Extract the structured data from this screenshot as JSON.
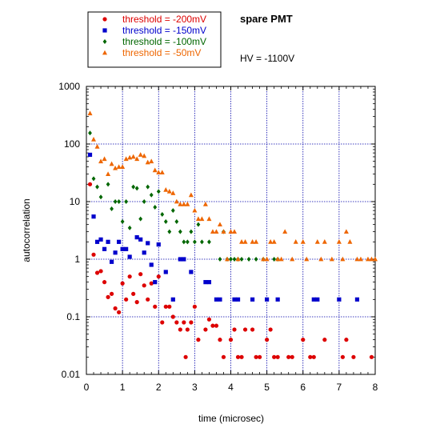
{
  "chart_data": {
    "type": "scatter",
    "title": "spare PMT",
    "annotation": "HV = -1100V",
    "xlabel": "time (microsec)",
    "ylabel": "autocorrelation",
    "xlim": [
      0,
      8
    ],
    "ylim": [
      0.01,
      1000
    ],
    "yscale": "log",
    "grid": true,
    "grid_style": "dotted, blue",
    "legend_position": "top-left, outside plot",
    "x_ticks": [
      "0",
      "1",
      "2",
      "3",
      "4",
      "5",
      "6",
      "7",
      "8"
    ],
    "y_ticks": [
      "0.01",
      "0.1",
      "1",
      "10",
      "100",
      "1000"
    ],
    "series": [
      {
        "name": "threshold = -200mV",
        "color": "#dd0000",
        "marker": "circle",
        "points": [
          [
            0.1,
            20
          ],
          [
            0.2,
            1.2
          ],
          [
            0.3,
            0.58
          ],
          [
            0.4,
            0.62
          ],
          [
            0.5,
            0.4
          ],
          [
            0.6,
            0.22
          ],
          [
            0.7,
            0.25
          ],
          [
            0.8,
            0.14
          ],
          [
            0.9,
            0.12
          ],
          [
            1.0,
            0.38
          ],
          [
            1.1,
            0.2
          ],
          [
            1.2,
            0.5
          ],
          [
            1.3,
            0.25
          ],
          [
            1.4,
            0.18
          ],
          [
            1.5,
            0.55
          ],
          [
            1.6,
            0.35
          ],
          [
            1.7,
            0.2
          ],
          [
            1.8,
            0.38
          ],
          [
            1.9,
            0.15
          ],
          [
            2.0,
            0.5
          ],
          [
            2.1,
            0.08
          ],
          [
            2.2,
            0.15
          ],
          [
            2.3,
            0.15
          ],
          [
            2.4,
            0.1
          ],
          [
            2.5,
            0.08
          ],
          [
            2.6,
            0.06
          ],
          [
            2.7,
            0.08
          ],
          [
            2.75,
            0.02
          ],
          [
            2.8,
            0.06
          ],
          [
            2.9,
            0.08
          ],
          [
            3.0,
            0.15
          ],
          [
            3.1,
            0.04
          ],
          [
            3.3,
            0.06
          ],
          [
            3.4,
            0.09
          ],
          [
            3.5,
            0.07
          ],
          [
            3.6,
            0.07
          ],
          [
            3.7,
            0.04
          ],
          [
            3.8,
            0.02
          ],
          [
            4.0,
            0.04
          ],
          [
            4.1,
            0.06
          ],
          [
            4.2,
            0.02
          ],
          [
            4.3,
            0.02
          ],
          [
            4.4,
            0.06
          ],
          [
            4.6,
            0.06
          ],
          [
            4.7,
            0.02
          ],
          [
            4.8,
            0.02
          ],
          [
            5.0,
            0.04
          ],
          [
            5.1,
            0.06
          ],
          [
            5.2,
            0.02
          ],
          [
            5.3,
            0.02
          ],
          [
            5.6,
            0.02
          ],
          [
            5.7,
            0.02
          ],
          [
            6.0,
            0.04
          ],
          [
            6.2,
            0.02
          ],
          [
            6.3,
            0.02
          ],
          [
            6.6,
            0.04
          ],
          [
            7.1,
            0.02
          ],
          [
            7.2,
            0.04
          ],
          [
            7.4,
            0.02
          ],
          [
            7.9,
            0.02
          ]
        ]
      },
      {
        "name": "threshold = -150mV",
        "color": "#0000cc",
        "marker": "square",
        "points": [
          [
            0.1,
            65
          ],
          [
            0.2,
            5.5
          ],
          [
            0.3,
            2
          ],
          [
            0.4,
            2.2
          ],
          [
            0.5,
            1.5
          ],
          [
            0.6,
            2
          ],
          [
            0.7,
            0.9
          ],
          [
            0.8,
            1.3
          ],
          [
            0.9,
            2
          ],
          [
            1.0,
            1.5
          ],
          [
            1.1,
            1.5
          ],
          [
            1.2,
            1.1
          ],
          [
            1.4,
            2.4
          ],
          [
            1.5,
            2.2
          ],
          [
            1.6,
            1.3
          ],
          [
            1.7,
            1.9
          ],
          [
            1.8,
            0.8
          ],
          [
            1.9,
            0.4
          ],
          [
            2.0,
            1.8
          ],
          [
            2.2,
            0.6
          ],
          [
            2.4,
            0.2
          ],
          [
            2.6,
            1
          ],
          [
            2.7,
            1
          ],
          [
            2.9,
            0.6
          ],
          [
            3.3,
            0.4
          ],
          [
            3.4,
            0.4
          ],
          [
            3.6,
            0.2
          ],
          [
            3.7,
            0.2
          ],
          [
            4.1,
            0.2
          ],
          [
            4.2,
            0.2
          ],
          [
            4.6,
            0.2
          ],
          [
            5.0,
            0.2
          ],
          [
            5.3,
            0.2
          ],
          [
            6.3,
            0.2
          ],
          [
            6.4,
            0.2
          ],
          [
            7.0,
            0.2
          ],
          [
            7.5,
            0.2
          ]
        ]
      },
      {
        "name": "threshold = -100mV",
        "color": "#006600",
        "marker": "diamond",
        "points": [
          [
            0.1,
            155
          ],
          [
            0.2,
            25
          ],
          [
            0.3,
            18
          ],
          [
            0.4,
            12
          ],
          [
            0.6,
            20
          ],
          [
            0.7,
            7.5
          ],
          [
            0.8,
            10
          ],
          [
            0.9,
            10
          ],
          [
            1.0,
            4.5
          ],
          [
            1.1,
            10
          ],
          [
            1.2,
            3.5
          ],
          [
            1.3,
            18
          ],
          [
            1.4,
            17
          ],
          [
            1.5,
            5
          ],
          [
            1.6,
            10
          ],
          [
            1.7,
            18
          ],
          [
            1.8,
            13
          ],
          [
            1.9,
            8
          ],
          [
            2.0,
            15
          ],
          [
            2.1,
            6
          ],
          [
            2.2,
            4.5
          ],
          [
            2.3,
            3
          ],
          [
            2.4,
            7
          ],
          [
            2.5,
            4.5
          ],
          [
            2.6,
            3
          ],
          [
            2.7,
            2
          ],
          [
            2.8,
            2
          ],
          [
            2.9,
            3
          ],
          [
            3.0,
            2
          ],
          [
            3.1,
            4
          ],
          [
            3.2,
            2
          ],
          [
            3.4,
            2
          ],
          [
            3.7,
            1
          ],
          [
            3.8,
            3
          ],
          [
            3.9,
            1
          ],
          [
            4.0,
            1
          ],
          [
            4.1,
            1
          ],
          [
            4.2,
            1
          ],
          [
            4.3,
            1
          ],
          [
            4.5,
            1
          ],
          [
            4.7,
            1
          ],
          [
            4.9,
            1
          ],
          [
            5.2,
            1
          ],
          [
            5.3,
            1
          ]
        ]
      },
      {
        "name": "threshold = -50mV",
        "color": "#ee6600",
        "marker": "triangle",
        "points": [
          [
            0.1,
            340
          ],
          [
            0.2,
            120
          ],
          [
            0.3,
            90
          ],
          [
            0.4,
            50
          ],
          [
            0.5,
            55
          ],
          [
            0.6,
            30
          ],
          [
            0.7,
            45
          ],
          [
            0.8,
            38
          ],
          [
            0.9,
            40
          ],
          [
            1.0,
            40
          ],
          [
            1.1,
            55
          ],
          [
            1.2,
            58
          ],
          [
            1.3,
            60
          ],
          [
            1.4,
            55
          ],
          [
            1.5,
            65
          ],
          [
            1.6,
            62
          ],
          [
            1.7,
            48
          ],
          [
            1.8,
            50
          ],
          [
            1.9,
            35
          ],
          [
            2.0,
            32
          ],
          [
            2.1,
            32
          ],
          [
            2.2,
            16
          ],
          [
            2.3,
            15
          ],
          [
            2.4,
            14
          ],
          [
            2.5,
            10
          ],
          [
            2.6,
            9
          ],
          [
            2.7,
            9
          ],
          [
            2.8,
            9
          ],
          [
            2.9,
            13
          ],
          [
            3.0,
            7
          ],
          [
            3.1,
            5
          ],
          [
            3.2,
            5
          ],
          [
            3.3,
            9
          ],
          [
            3.4,
            5
          ],
          [
            3.5,
            3
          ],
          [
            3.6,
            3
          ],
          [
            3.7,
            4
          ],
          [
            3.8,
            3
          ],
          [
            3.9,
            1
          ],
          [
            4.0,
            3
          ],
          [
            4.1,
            3
          ],
          [
            4.2,
            1
          ],
          [
            4.3,
            2
          ],
          [
            4.4,
            2
          ],
          [
            4.6,
            2
          ],
          [
            4.7,
            2
          ],
          [
            4.9,
            1
          ],
          [
            5.0,
            1
          ],
          [
            5.1,
            2
          ],
          [
            5.2,
            2
          ],
          [
            5.3,
            1
          ],
          [
            5.4,
            1
          ],
          [
            5.5,
            3
          ],
          [
            5.7,
            1
          ],
          [
            5.8,
            2
          ],
          [
            6.0,
            2
          ],
          [
            6.1,
            1
          ],
          [
            6.4,
            2
          ],
          [
            6.5,
            1
          ],
          [
            6.6,
            2
          ],
          [
            6.8,
            1
          ],
          [
            7.0,
            2
          ],
          [
            7.1,
            1
          ],
          [
            7.2,
            3
          ],
          [
            7.3,
            2
          ],
          [
            7.5,
            1
          ],
          [
            7.6,
            1
          ],
          [
            7.8,
            1
          ],
          [
            7.9,
            1
          ],
          [
            8.0,
            1
          ]
        ]
      }
    ]
  }
}
